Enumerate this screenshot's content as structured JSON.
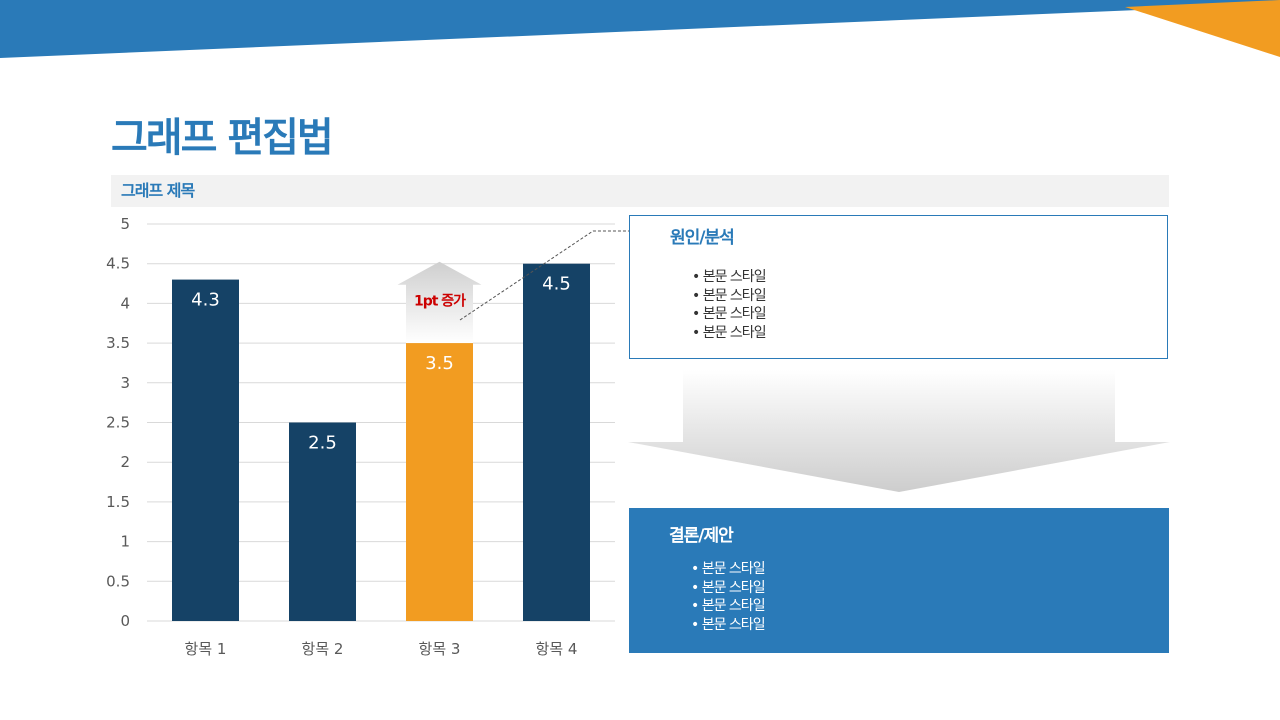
{
  "page": {
    "title": "그래프 편집법",
    "colors": {
      "title": "#2a7ab8",
      "top_band": "#2a7ab8",
      "top_accent": "#f29c21",
      "bar_default": "#154266",
      "bar_highlight": "#f29c21",
      "annotation_red": "#cc0000",
      "result_panel": "#2a7ab8"
    }
  },
  "chart_data": {
    "type": "bar",
    "title": "그래프 제목",
    "categories": [
      "항목 1",
      "항목 2",
      "항목 3",
      "항목 4"
    ],
    "series": [
      {
        "values": [
          4.3,
          2.5,
          3.5,
          4.5
        ],
        "data_labels": [
          "4.3",
          "2.5",
          "3.5",
          "4.5"
        ]
      }
    ],
    "highlight_index": 2,
    "ylim": [
      0,
      5
    ],
    "yticks": [
      0,
      0.5,
      1,
      1.5,
      2,
      2.5,
      3,
      3.5,
      4,
      4.5,
      5
    ],
    "ytick_labels": [
      "0",
      "0.5",
      "1",
      "1.5",
      "2",
      "2.5",
      "3",
      "3.5",
      "4",
      "4.5",
      "5"
    ],
    "grid": true,
    "annotation": {
      "text": "1pt 증가",
      "category_index": 2,
      "from": 3.5,
      "to": 4.5
    }
  },
  "cause_panel": {
    "heading": "원인/분석",
    "items": [
      "본문 스타일",
      "본문 스타일",
      "본문 스타일",
      "본문 스타일"
    ]
  },
  "result_panel": {
    "heading": "결론/제안",
    "items": [
      "본문 스타일",
      "본문 스타일",
      "본문 스타일",
      "본문 스타일"
    ]
  }
}
